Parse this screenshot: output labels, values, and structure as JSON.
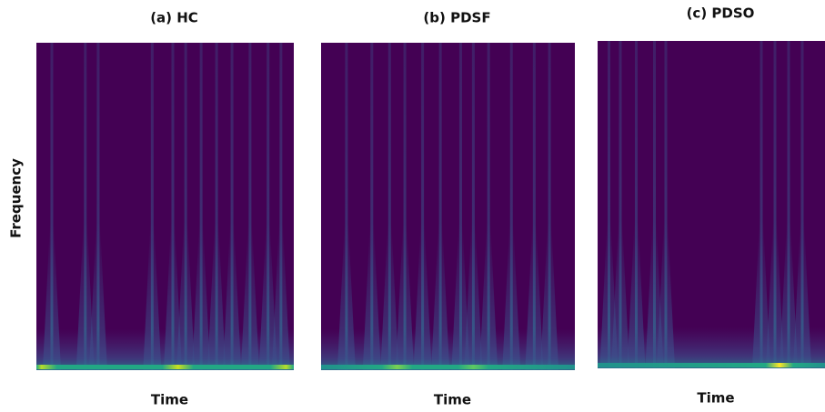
{
  "y_label": "Frequency",
  "panels": [
    {
      "title": "(a) HC",
      "x_label": "Time"
    },
    {
      "title": "(b) PDSF",
      "x_label": "Time"
    },
    {
      "title": "(c) PDSO",
      "x_label": "Time"
    }
  ]
}
